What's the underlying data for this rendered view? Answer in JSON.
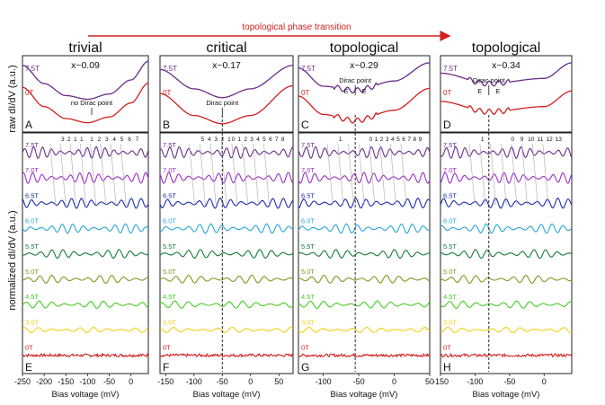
{
  "header": {
    "arrow_label": "topological phase transition",
    "arrow_color": "#d42020"
  },
  "y_labels": {
    "top": "raw dI/dV (a.u.)",
    "bottom": "normalized dI/dV (a.u.)"
  },
  "field_colors": {
    "7.5T": "#6a2d8a",
    "7.0T": "#9b30c8",
    "6.5T": "#1c2ea8",
    "6.0T": "#2aa6d8",
    "5.5T": "#157a3a",
    "5.0T": "#7e9a22",
    "4.5T": "#44cc22",
    "3.0T": "#f0d010",
    "0T": "#d21f1f"
  },
  "chart_data": [
    {
      "type": "line",
      "panel_top": "A",
      "panel_bottom": "E",
      "title": "trivial",
      "subtitle": "x~0.09",
      "raw_labels": [
        "7.5T",
        "0T"
      ],
      "annotation": "no Dirac point",
      "xlim": [
        -250,
        40
      ],
      "ticks": [
        -250,
        -200,
        -150,
        -100,
        -50,
        0
      ],
      "tick_labels": [
        "-250",
        "-200",
        "-150",
        "-100",
        "-50",
        "0"
      ],
      "xlabel": "Bias voltage (mV)",
      "raw_series": [
        {
          "name": "7.5T",
          "x": [
            -250,
            -200,
            -150,
            -100,
            -50,
            0,
            40
          ],
          "y": [
            0.9,
            0.55,
            0.32,
            0.25,
            0.35,
            0.62,
            0.98
          ]
        },
        {
          "name": "0T",
          "x": [
            -250,
            -200,
            -150,
            -100,
            -50,
            0,
            40
          ],
          "y": [
            0.72,
            0.35,
            0.12,
            0.04,
            0.15,
            0.42,
            0.8
          ]
        }
      ],
      "ll_labels_left": [
        "3",
        "2",
        "1",
        "1"
      ],
      "ll_labels_right": [
        "1",
        "2",
        "3",
        "4",
        "5",
        "6",
        "7"
      ],
      "norm_fields": [
        "7.5T",
        "7.0T",
        "6.5T",
        "6.0T",
        "5.5T",
        "5.0T",
        "4.5T",
        "3.0T",
        "0T"
      ]
    },
    {
      "type": "line",
      "panel_top": "B",
      "panel_bottom": "F",
      "title": "critical",
      "subtitle": "x~0.17",
      "raw_labels": [
        "7.5T",
        "0T"
      ],
      "annotation": "Dirac point",
      "dirac_x": -50,
      "xlim": [
        -160,
        75
      ],
      "ticks": [
        -150,
        -100,
        -50,
        0,
        50
      ],
      "tick_labels": [
        "-150",
        "-100",
        "-50",
        "0",
        "50"
      ],
      "xlabel": "Bias voltage (mV)",
      "raw_series": [
        {
          "name": "7.5T",
          "x": [
            -160,
            -100,
            -50,
            0,
            75
          ],
          "y": [
            0.82,
            0.45,
            0.28,
            0.45,
            0.9
          ]
        },
        {
          "name": "0T",
          "x": [
            -160,
            -100,
            -50,
            0,
            75
          ],
          "y": [
            0.6,
            0.18,
            0.02,
            0.18,
            0.75
          ]
        }
      ],
      "ll_labels_left": [
        "5",
        "4",
        "3",
        "2",
        "1"
      ],
      "ll_labels_right": [
        "0",
        "1",
        "2",
        "3",
        "4",
        "5",
        "6",
        "7",
        "8"
      ],
      "norm_fields": [
        "7.5T",
        "7.0T",
        "6.5T",
        "6.0T",
        "5.5T",
        "5.0T",
        "4.5T",
        "3.0T",
        "0T"
      ]
    },
    {
      "type": "line",
      "panel_top": "C",
      "panel_bottom": "G",
      "title": "topological",
      "subtitle": "x~0.29",
      "raw_labels": [
        "7.5T",
        "0T"
      ],
      "annotation": "Dirac point",
      "e_labels": [
        "E",
        "E"
      ],
      "dirac_x": -55,
      "xlim": [
        -135,
        50
      ],
      "ticks": [
        -100,
        -50,
        0,
        50
      ],
      "tick_labels": [
        "-100",
        "-50",
        "0",
        "50"
      ],
      "xlabel": "Bias voltage (mV)",
      "raw_series": [
        {
          "name": "7.5T",
          "x": [
            -135,
            -100,
            -55,
            0,
            50
          ],
          "y": [
            0.85,
            0.5,
            0.42,
            0.6,
            0.95
          ]
        },
        {
          "name": "0T",
          "x": [
            -135,
            -100,
            -55,
            0,
            50
          ],
          "y": [
            0.55,
            0.2,
            0.08,
            0.28,
            0.7
          ]
        }
      ],
      "ll_labels_left": [
        "1"
      ],
      "ll_labels_right": [
        "0",
        "1",
        "2",
        "3",
        "4",
        "5",
        "6",
        "7",
        "8",
        "9"
      ],
      "norm_fields": [
        "7.5T",
        "7.0T",
        "6.5T",
        "6.0T",
        "5.5T",
        "5.0T",
        "4.5T",
        "3.0T",
        "0T"
      ]
    },
    {
      "type": "line",
      "panel_top": "D",
      "panel_bottom": "H",
      "title": "topological",
      "subtitle": "x~0.34",
      "raw_labels": [
        "7.5T",
        "0T"
      ],
      "annotation": "Dirac point",
      "e_labels": [
        "E",
        "E"
      ],
      "dirac_x": -80,
      "xlim": [
        -150,
        40
      ],
      "ticks": [
        -150,
        -100,
        -50,
        0
      ],
      "tick_labels": [
        "-150",
        "-100",
        "-50",
        "0"
      ],
      "xlabel": "Bias voltage (mV)",
      "raw_series": [
        {
          "name": "7.5T",
          "x": [
            -150,
            -80,
            0,
            40
          ],
          "y": [
            0.75,
            0.55,
            0.65,
            0.95
          ]
        },
        {
          "name": "0T",
          "x": [
            -150,
            -80,
            0,
            40
          ],
          "y": [
            0.45,
            0.25,
            0.35,
            0.65
          ]
        }
      ],
      "ll_labels_left": [
        "1"
      ],
      "ll_labels_right": [
        "0",
        "9",
        "10",
        "11",
        "12",
        "13"
      ],
      "norm_fields": [
        "7.5T",
        "7.0T",
        "6.5T",
        "6.0T",
        "5.5T",
        "5.0T",
        "4.5T",
        "3.0T",
        "0T"
      ]
    }
  ]
}
